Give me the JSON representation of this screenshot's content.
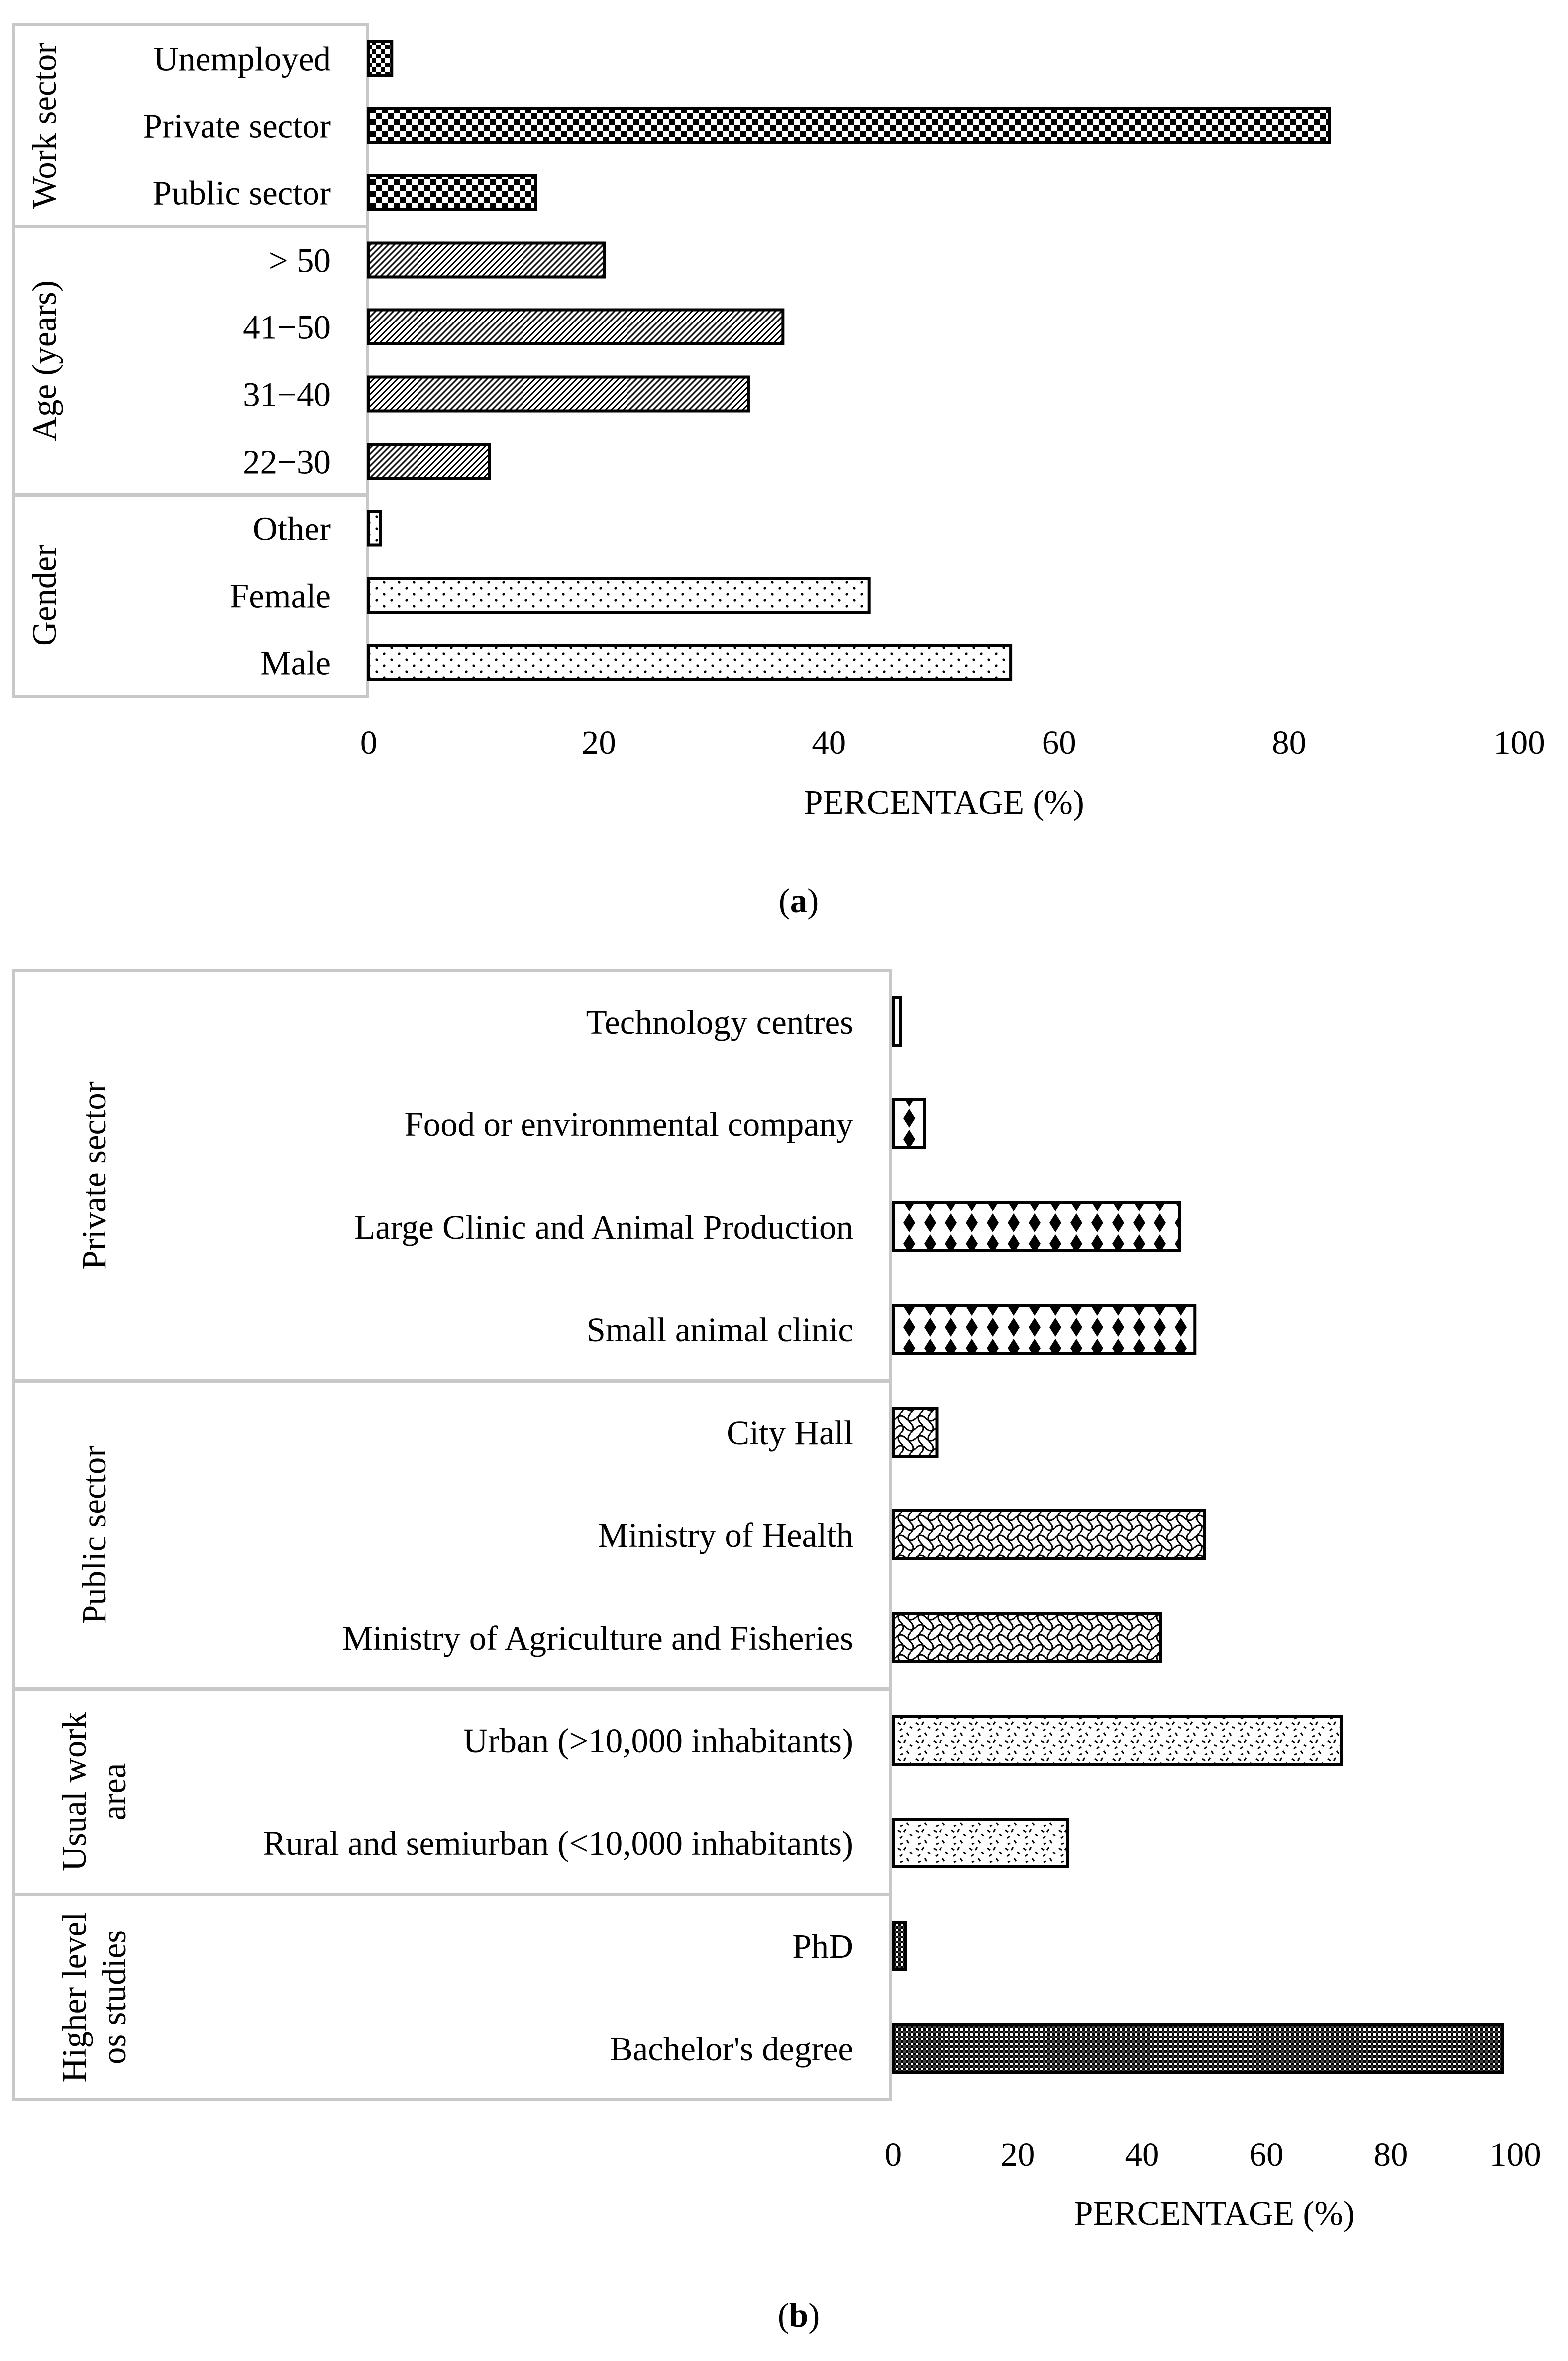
{
  "chart_data": [
    {
      "type": "bar",
      "orientation": "horizontal",
      "caption_letter": "a",
      "xlabel": "PERCENTAGE (%)",
      "xlim": [
        0,
        100
      ],
      "ticks": [
        "0",
        "20",
        "40",
        "60",
        "80",
        "100"
      ],
      "groups": [
        {
          "label": "Work sector",
          "items": [
            {
              "label": "Unemployed",
              "value": 2,
              "pattern": "checker-fine"
            },
            {
              "label": "Private sector",
              "value": 83.5,
              "pattern": "checker"
            },
            {
              "label": "Public sector",
              "value": 14.5,
              "pattern": "checker"
            }
          ]
        },
        {
          "label": "Age (years)",
          "items": [
            {
              "label": "> 50",
              "value": 20.5,
              "pattern": "diagonal"
            },
            {
              "label": "41−50",
              "value": 36,
              "pattern": "diagonal"
            },
            {
              "label": "31−40",
              "value": 33,
              "pattern": "diagonal"
            },
            {
              "label": "22−30",
              "value": 10.5,
              "pattern": "diagonal"
            }
          ]
        },
        {
          "label": "Gender",
          "items": [
            {
              "label": "Other",
              "value": 1,
              "pattern": "dots"
            },
            {
              "label": "Female",
              "value": 43.5,
              "pattern": "dots"
            },
            {
              "label": "Male",
              "value": 55.8,
              "pattern": "dots"
            }
          ]
        }
      ]
    },
    {
      "type": "bar",
      "orientation": "horizontal",
      "caption_letter": "b",
      "xlabel": "PERCENTAGE (%)",
      "xlim": [
        0,
        100
      ],
      "ticks": [
        "0",
        "20",
        "40",
        "60",
        "80",
        "100"
      ],
      "groups": [
        {
          "label": "Private sector",
          "items": [
            {
              "label": "Technology centres",
              "value": 1.2,
              "pattern": "diamond"
            },
            {
              "label": "Food or environmental company",
              "value": 5,
              "pattern": "diamond"
            },
            {
              "label": "Large Clinic and Animal Production",
              "value": 46,
              "pattern": "diamond"
            },
            {
              "label": "Small animal clinic",
              "value": 48.5,
              "pattern": "diamond"
            }
          ]
        },
        {
          "label": "Public sector",
          "items": [
            {
              "label": "City Hall",
              "value": 7,
              "pattern": "wave"
            },
            {
              "label": "Ministry of Health",
              "value": 50,
              "pattern": "wave"
            },
            {
              "label": "Ministry of Agriculture and Fisheries",
              "value": 43,
              "pattern": "wave"
            }
          ]
        },
        {
          "label": "Usual work area",
          "label_lines": [
            "Usual work",
            "area"
          ],
          "items": [
            {
              "label": "Urban (>10,000 inhabitants)",
              "value": 72,
              "pattern": "confetti"
            },
            {
              "label": "Rural and semiurban (<10,000 inhabitants)",
              "value": 28,
              "pattern": "confetti"
            }
          ]
        },
        {
          "label": "Higher level os studies",
          "label_lines": [
            "Higher level",
            "os studies"
          ],
          "items": [
            {
              "label": "PhD",
              "value": 2,
              "pattern": "dense"
            },
            {
              "label": "Bachelor's degree",
              "value": 98,
              "pattern": "dense"
            }
          ]
        }
      ]
    }
  ]
}
